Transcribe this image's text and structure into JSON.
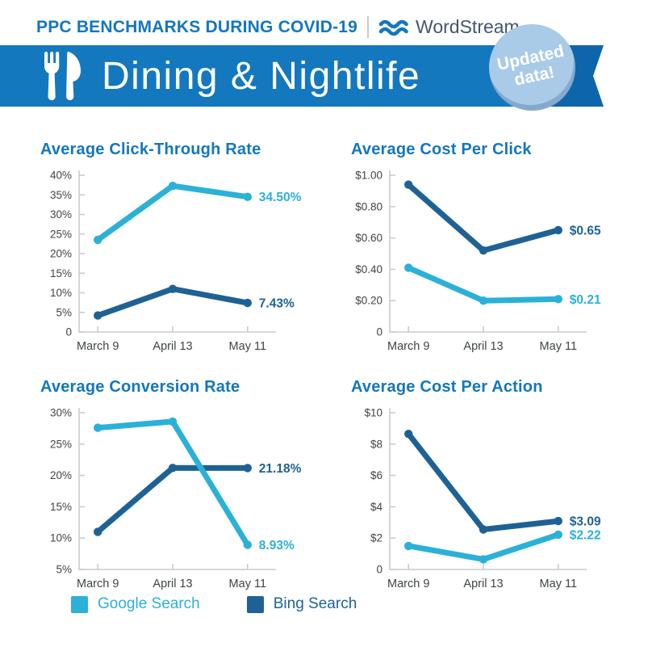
{
  "header": {
    "kicker": "PPC BENCHMARKS DURING COVID-19",
    "brand": "WordStream",
    "banner_title": "Dining & Nightlife",
    "badge_line1": "Updated",
    "badge_line2": "data!"
  },
  "colors": {
    "title_blue": "#1377BE",
    "banner_blue": "#1478BE",
    "ribbon_dark": "#0D66AC",
    "badge_bg": "#A9CBE8",
    "brand_text": "#44566B",
    "google": "#2BB1D8",
    "bing": "#1E6295",
    "axis": "#C8CCD0",
    "tick_text": "#3F4447"
  },
  "legend": [
    {
      "label": "Google Search",
      "color": "#2BB1D8"
    },
    {
      "label": "Bing Search",
      "color": "#1E6295"
    }
  ],
  "chart_data": [
    {
      "type": "line",
      "title": "Average Click-Through Rate",
      "categories": [
        "March 9",
        "April 13",
        "May 11"
      ],
      "ylim": [
        0,
        40
      ],
      "yticks": [
        {
          "v": 40,
          "label": "40%"
        },
        {
          "v": 35,
          "label": "35%"
        },
        {
          "v": 30,
          "label": "30%"
        },
        {
          "v": 25,
          "label": "25%"
        },
        {
          "v": 20,
          "label": "20%"
        },
        {
          "v": 15,
          "label": "15%"
        },
        {
          "v": 10,
          "label": "10%"
        },
        {
          "v": 5,
          "label": "5%"
        },
        {
          "v": 0,
          "label": "0"
        }
      ],
      "series": [
        {
          "name": "Bing Search",
          "color": "#1E6295",
          "values": [
            4.2,
            11.0,
            7.43
          ],
          "end_label": "7.43%"
        },
        {
          "name": "Google Search",
          "color": "#2BB1D8",
          "values": [
            23.5,
            37.3,
            34.5
          ],
          "end_label": "34.50%"
        }
      ]
    },
    {
      "type": "line",
      "title": "Average Cost Per Click",
      "categories": [
        "March 9",
        "April 13",
        "May 11"
      ],
      "ylim": [
        0,
        1.0
      ],
      "yticks": [
        {
          "v": 1.0,
          "label": "$1.00"
        },
        {
          "v": 0.8,
          "label": "$0.80"
        },
        {
          "v": 0.6,
          "label": "$0.60"
        },
        {
          "v": 0.4,
          "label": "$0.40"
        },
        {
          "v": 0.2,
          "label": "$0.20"
        },
        {
          "v": 0,
          "label": "0"
        }
      ],
      "series": [
        {
          "name": "Bing Search",
          "color": "#1E6295",
          "values": [
            0.94,
            0.52,
            0.65
          ],
          "end_label": "$0.65"
        },
        {
          "name": "Google Search",
          "color": "#2BB1D8",
          "values": [
            0.41,
            0.2,
            0.21
          ],
          "end_label": "$0.21"
        }
      ]
    },
    {
      "type": "line",
      "title": "Average Conversion Rate",
      "categories": [
        "March 9",
        "April 13",
        "May 11"
      ],
      "ylim": [
        5,
        30
      ],
      "yticks": [
        {
          "v": 30,
          "label": "30%"
        },
        {
          "v": 25,
          "label": "25%"
        },
        {
          "v": 20,
          "label": "20%"
        },
        {
          "v": 15,
          "label": "15%"
        },
        {
          "v": 10,
          "label": "10%"
        },
        {
          "v": 5,
          "label": "5%"
        }
      ],
      "series": [
        {
          "name": "Bing Search",
          "color": "#1E6295",
          "values": [
            11.0,
            21.2,
            21.18
          ],
          "end_label": "21.18%"
        },
        {
          "name": "Google Search",
          "color": "#2BB1D8",
          "values": [
            27.6,
            28.6,
            8.93
          ],
          "end_label": "8.93%"
        }
      ]
    },
    {
      "type": "line",
      "title": "Average Cost Per Action",
      "categories": [
        "March 9",
        "April 13",
        "May 11"
      ],
      "ylim": [
        0,
        10
      ],
      "yticks": [
        {
          "v": 10,
          "label": "$10"
        },
        {
          "v": 8,
          "label": "$8"
        },
        {
          "v": 6,
          "label": "$6"
        },
        {
          "v": 4,
          "label": "$4"
        },
        {
          "v": 2,
          "label": "$2"
        },
        {
          "v": 0,
          "label": "0"
        }
      ],
      "series": [
        {
          "name": "Bing Search",
          "color": "#1E6295",
          "values": [
            8.65,
            2.55,
            3.09
          ],
          "end_label": "$3.09"
        },
        {
          "name": "Google Search",
          "color": "#2BB1D8",
          "values": [
            1.5,
            0.65,
            2.22
          ],
          "end_label": "$2.22"
        }
      ]
    }
  ]
}
